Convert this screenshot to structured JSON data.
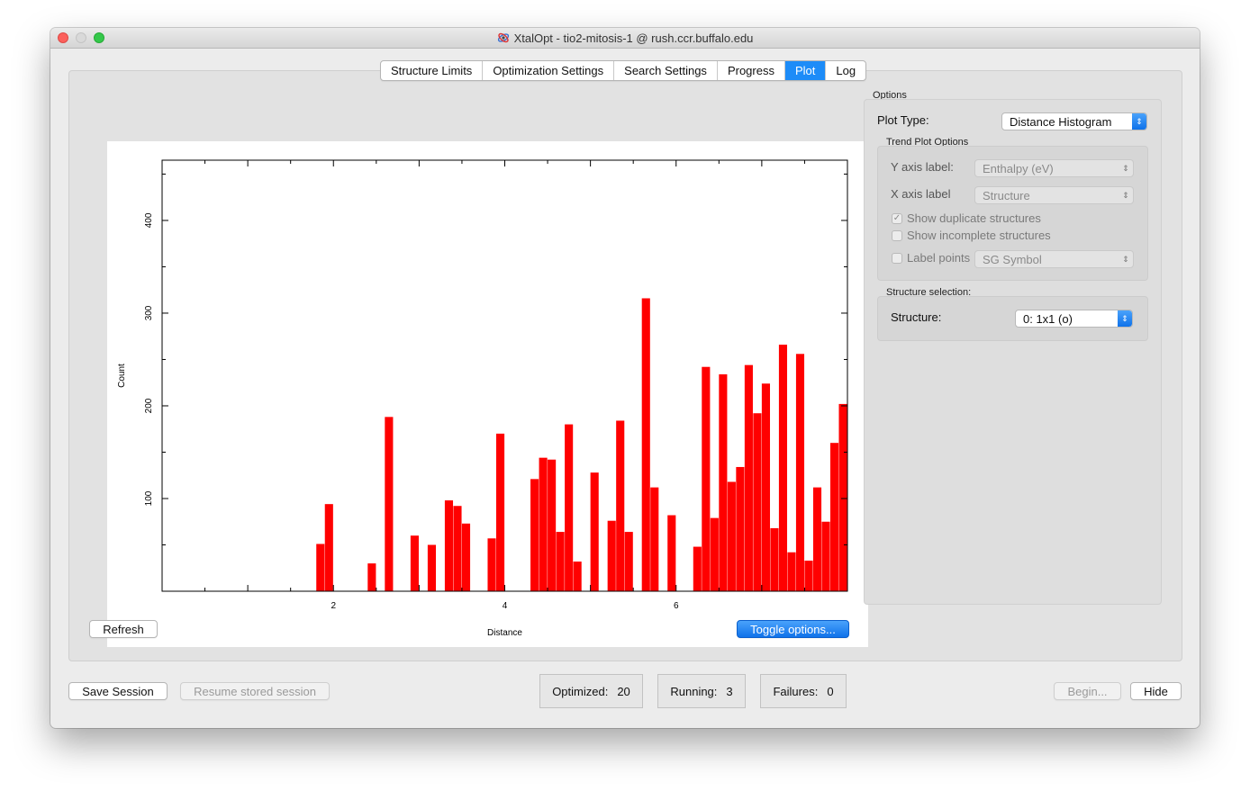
{
  "window": {
    "title": "XtalOpt - tio2-mitosis-1 @ rush.ccr.buffalo.edu",
    "app_icon": "xtalopt-icon"
  },
  "tabs": [
    {
      "label": "Structure Limits",
      "active": false
    },
    {
      "label": "Optimization Settings",
      "active": false
    },
    {
      "label": "Search Settings",
      "active": false
    },
    {
      "label": "Progress",
      "active": false
    },
    {
      "label": "Plot",
      "active": true
    },
    {
      "label": "Log",
      "active": false
    }
  ],
  "plot": {
    "refresh_label": "Refresh",
    "toggle_label": "Toggle options..."
  },
  "chart_data": {
    "type": "bar",
    "xlabel": "Distance",
    "ylabel": "Count",
    "xlim": [
      0,
      8
    ],
    "ylim": [
      0,
      465
    ],
    "x_tick_labels": [
      "2",
      "4",
      "6"
    ],
    "x_ticks": [
      2,
      4,
      6
    ],
    "y_tick_labels": [
      "100",
      "200",
      "300",
      "400"
    ],
    "y_ticks": [
      100,
      200,
      300,
      400
    ],
    "bar_width": 0.1,
    "color": "#ff0000",
    "bars": [
      {
        "x": 1.85,
        "y": 51
      },
      {
        "x": 1.95,
        "y": 94
      },
      {
        "x": 2.45,
        "y": 30
      },
      {
        "x": 2.65,
        "y": 188
      },
      {
        "x": 2.95,
        "y": 60
      },
      {
        "x": 3.15,
        "y": 50
      },
      {
        "x": 3.35,
        "y": 98
      },
      {
        "x": 3.45,
        "y": 92
      },
      {
        "x": 3.55,
        "y": 73
      },
      {
        "x": 3.85,
        "y": 57
      },
      {
        "x": 3.95,
        "y": 170
      },
      {
        "x": 4.35,
        "y": 121
      },
      {
        "x": 4.45,
        "y": 144
      },
      {
        "x": 4.55,
        "y": 142
      },
      {
        "x": 4.65,
        "y": 64
      },
      {
        "x": 4.75,
        "y": 180
      },
      {
        "x": 4.85,
        "y": 32
      },
      {
        "x": 5.05,
        "y": 128
      },
      {
        "x": 5.25,
        "y": 76
      },
      {
        "x": 5.35,
        "y": 184
      },
      {
        "x": 5.45,
        "y": 64
      },
      {
        "x": 5.65,
        "y": 316
      },
      {
        "x": 5.75,
        "y": 112
      },
      {
        "x": 5.95,
        "y": 82
      },
      {
        "x": 6.25,
        "y": 48
      },
      {
        "x": 6.35,
        "y": 242
      },
      {
        "x": 6.45,
        "y": 79
      },
      {
        "x": 6.55,
        "y": 234
      },
      {
        "x": 6.65,
        "y": 118
      },
      {
        "x": 6.75,
        "y": 134
      },
      {
        "x": 6.85,
        "y": 244
      },
      {
        "x": 6.95,
        "y": 192
      },
      {
        "x": 7.05,
        "y": 224
      },
      {
        "x": 7.15,
        "y": 68
      },
      {
        "x": 7.25,
        "y": 266
      },
      {
        "x": 7.35,
        "y": 42
      },
      {
        "x": 7.45,
        "y": 256
      },
      {
        "x": 7.55,
        "y": 33
      },
      {
        "x": 7.65,
        "y": 112
      },
      {
        "x": 7.75,
        "y": 75
      },
      {
        "x": 7.85,
        "y": 160
      },
      {
        "x": 7.95,
        "y": 202
      }
    ]
  },
  "options": {
    "group_label": "Options",
    "plot_type_label": "Plot Type:",
    "plot_type_value": "Distance Histogram",
    "trend_group_label": "Trend Plot Options",
    "y_axis_label": "Y axis label:",
    "y_axis_value": "Enthalpy (eV)",
    "x_axis_label": "X axis label",
    "x_axis_value": "Structure",
    "show_duplicates_label": "Show duplicate structures",
    "show_duplicates_checked": true,
    "show_incomplete_label": "Show incomplete structures",
    "show_incomplete_checked": false,
    "label_points_label": "Label points",
    "label_points_checked": false,
    "label_points_value": "SG Symbol",
    "structure_group_label": "Structure selection:",
    "structure_label": "Structure:",
    "structure_value": "0: 1x1 (o)"
  },
  "footer": {
    "save_session_label": "Save Session",
    "resume_label": "Resume stored session",
    "optimized_label": "Optimized:",
    "optimized_value": "20",
    "running_label": "Running:",
    "running_value": "3",
    "failures_label": "Failures:",
    "failures_value": "0",
    "begin_label": "Begin...",
    "hide_label": "Hide"
  }
}
